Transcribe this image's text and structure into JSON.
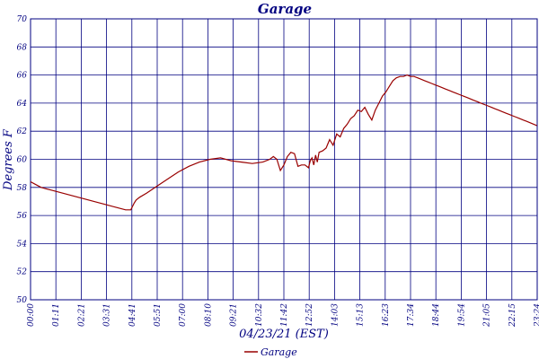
{
  "chart_data": {
    "type": "line",
    "title": "Garage",
    "xlabel": "04/23/21 (EST)",
    "ylabel": "Degrees F",
    "ylim": [
      50,
      70
    ],
    "yticks": [
      50,
      52,
      54,
      56,
      58,
      60,
      62,
      64,
      66,
      68,
      70
    ],
    "xticks": [
      "00:00",
      "01:11",
      "02:21",
      "03:31",
      "04:41",
      "05:51",
      "07:00",
      "08:10",
      "09:21",
      "10:32",
      "11:42",
      "12:52",
      "14:03",
      "15:13",
      "16:23",
      "17:34",
      "18:44",
      "19:54",
      "21:05",
      "22:15",
      "23:24"
    ],
    "grid": true,
    "legend_position": "bottom-center",
    "colors": {
      "series": "#990000",
      "grid": "#000080",
      "text": "#000080"
    },
    "series": [
      {
        "name": "Garage",
        "x": [
          0,
          15,
          30,
          45,
          60,
          90,
          120,
          150,
          180,
          210,
          240,
          270,
          285,
          295,
          300,
          310,
          330,
          360,
          390,
          420,
          450,
          480,
          510,
          540,
          570,
          600,
          630,
          660,
          680,
          690,
          700,
          710,
          720,
          730,
          740,
          750,
          760,
          770,
          780,
          790,
          795,
          800,
          805,
          810,
          815,
          820,
          830,
          840,
          850,
          860,
          870,
          880,
          890,
          900,
          910,
          920,
          930,
          940,
          950,
          960,
          970,
          980,
          990,
          1000,
          1010,
          1020,
          1030,
          1040,
          1050,
          1060,
          1070,
          1080,
          1090,
          1100,
          1110,
          1120,
          1130,
          1140,
          1150,
          1160,
          1170,
          1180,
          1190,
          1200,
          1210,
          1220,
          1230,
          1240,
          1250,
          1260,
          1270,
          1280,
          1290,
          1300,
          1310,
          1320,
          1330,
          1340,
          1350,
          1360,
          1370,
          1380,
          1390,
          1400,
          1410,
          1420,
          1430,
          1439
        ],
        "y": [
          58.4,
          58.2,
          58.0,
          57.9,
          57.8,
          57.6,
          57.4,
          57.2,
          57.0,
          56.8,
          56.6,
          56.4,
          56.4,
          56.9,
          57.1,
          57.3,
          57.6,
          58.1,
          58.6,
          59.1,
          59.5,
          59.8,
          60.0,
          60.1,
          59.9,
          59.8,
          59.7,
          59.8,
          60.0,
          60.2,
          60.0,
          59.2,
          59.6,
          60.2,
          60.5,
          60.4,
          59.5,
          59.6,
          59.6,
          59.4,
          59.9,
          60.1,
          59.6,
          60.3,
          59.8,
          60.5,
          60.6,
          60.8,
          61.4,
          61.0,
          61.8,
          61.6,
          62.2,
          62.5,
          62.9,
          63.1,
          63.5,
          63.4,
          63.7,
          63.2,
          62.8,
          63.5,
          64.0,
          64.5,
          64.8,
          65.2,
          65.6,
          65.8,
          65.9,
          65.9,
          66.0,
          65.9,
          65.9,
          65.8,
          65.7,
          65.6,
          65.5,
          65.4,
          65.3,
          65.2,
          65.1,
          65.0,
          64.9,
          64.8,
          64.7,
          64.6,
          64.5,
          64.4,
          64.3,
          64.2,
          64.1,
          64.0,
          63.9,
          63.8,
          63.7,
          63.6,
          63.5,
          63.4,
          63.3,
          63.2,
          63.1,
          63.0,
          62.9,
          62.8,
          62.7,
          62.6,
          62.5,
          62.4
        ]
      }
    ]
  }
}
